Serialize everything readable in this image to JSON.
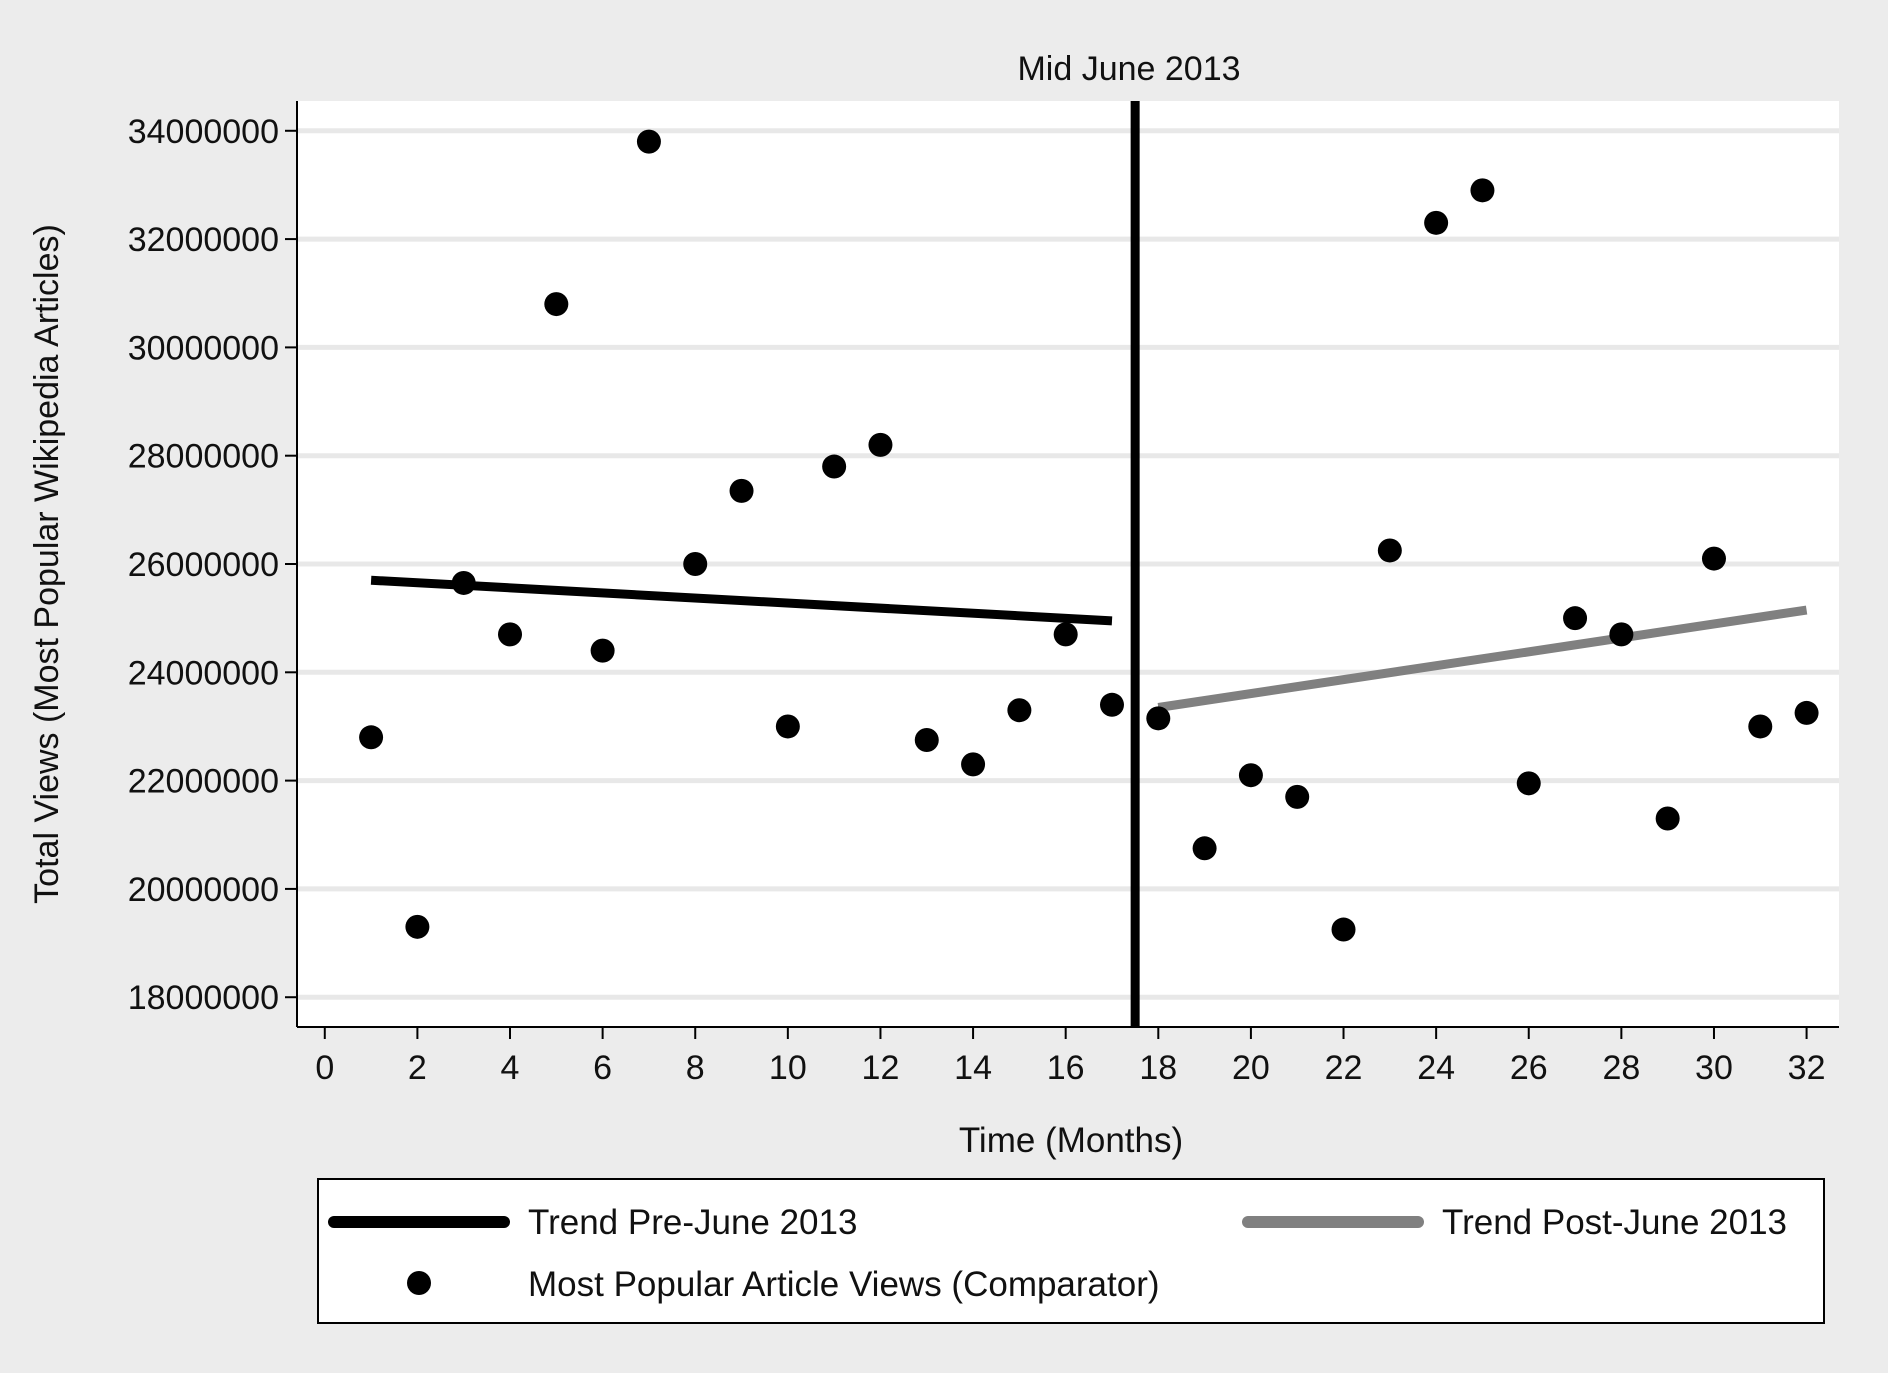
{
  "chart_data": {
    "type": "scatter",
    "title": "",
    "xlabel": "Time (Months)",
    "ylabel": "Total Views (Most Popular Wikipedia Articles)",
    "xlim": [
      -0.6,
      32.7
    ],
    "ylim": [
      17450000,
      34550000
    ],
    "x_ticks": [
      0,
      2,
      4,
      6,
      8,
      10,
      12,
      14,
      16,
      18,
      20,
      22,
      24,
      26,
      28,
      30,
      32
    ],
    "x_tick_labels": [
      "0",
      "2",
      "4",
      "6",
      "8",
      "10",
      "12",
      "14",
      "16",
      "18",
      "20",
      "22",
      "24",
      "26",
      "28",
      "30",
      "32"
    ],
    "y_ticks": [
      18000000,
      20000000,
      22000000,
      24000000,
      26000000,
      28000000,
      30000000,
      32000000,
      34000000
    ],
    "y_tick_labels": [
      "18000000",
      "20000000",
      "22000000",
      "24000000",
      "26000000",
      "28000000",
      "30000000",
      "32000000",
      "34000000"
    ],
    "grid": "horizontal",
    "series": [
      {
        "name": "Most Popular Article Views (Comparator)",
        "kind": "scatter",
        "color": "#000000",
        "x": [
          1,
          2,
          3,
          4,
          5,
          6,
          7,
          8,
          9,
          10,
          11,
          12,
          13,
          14,
          15,
          16,
          17,
          18,
          19,
          20,
          21,
          22,
          23,
          24,
          25,
          26,
          27,
          28,
          29,
          30,
          31,
          32
        ],
        "y": [
          22800000,
          19300000,
          25650000,
          24700000,
          30800000,
          24400000,
          33800000,
          26000000,
          27350000,
          23000000,
          27800000,
          28200000,
          22750000,
          22300000,
          23300000,
          24700000,
          23400000,
          23150000,
          20750000,
          22100000,
          21700000,
          19250000,
          26250000,
          32300000,
          32900000,
          21950000,
          25000000,
          24700000,
          21300000,
          26100000,
          23000000,
          23250000
        ]
      },
      {
        "name": "Trend Pre-June 2013",
        "kind": "line",
        "color": "#000000",
        "x": [
          1,
          17
        ],
        "y": [
          25700000,
          24950000
        ]
      },
      {
        "name": "Trend Post-June 2013",
        "kind": "line",
        "color": "#808080",
        "x": [
          18,
          32
        ],
        "y": [
          23350000,
          25150000
        ]
      }
    ],
    "annotations": [
      {
        "kind": "vertical-line",
        "x": 17.5,
        "label": "Mid June 2013",
        "color": "#000000"
      }
    ],
    "legend": {
      "placement": "bottom",
      "entries": [
        {
          "label": "Trend Pre-June 2013",
          "symbol": "line",
          "color": "#000000"
        },
        {
          "label": "Trend Post-June 2013",
          "symbol": "line",
          "color": "#808080"
        },
        {
          "label": "Most Popular Article Views (Comparator)",
          "symbol": "dot",
          "color": "#000000"
        }
      ]
    },
    "colors": {
      "background": "#ececec",
      "plot_background": "#ffffff",
      "grid": "#e8e8e8"
    }
  }
}
